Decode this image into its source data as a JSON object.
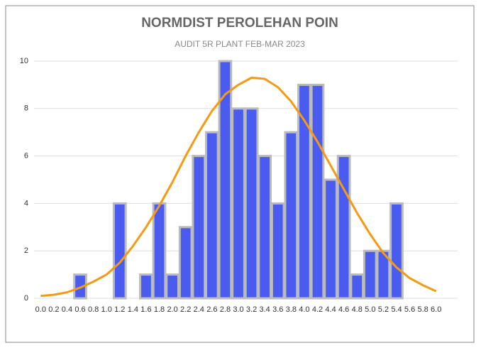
{
  "chart_data": {
    "type": "bar",
    "title": "NORMDIST PEROLEHAN POIN",
    "subtitle": "AUDIT 5R PLANT FEB-MAR 2023",
    "categories": [
      "0.0",
      "0.2",
      "0.4",
      "0.6",
      "0.8",
      "1.0",
      "1.2",
      "1.4",
      "1.6",
      "1.8",
      "2.0",
      "2.2",
      "2.4",
      "2.6",
      "2.8",
      "3.0",
      "3.2",
      "3.4",
      "3.6",
      "3.8",
      "4.0",
      "4.2",
      "4.4",
      "4.6",
      "4.8",
      "5.0",
      "5.2",
      "5.4",
      "5.6",
      "5.8",
      "6.0"
    ],
    "series": [
      {
        "type": "bar",
        "color": "#4a5cf0",
        "values": [
          0,
          0,
          0,
          1,
          0,
          0,
          4,
          0,
          1,
          4,
          1,
          3,
          6,
          7,
          10,
          8,
          8,
          6,
          4,
          7,
          9,
          9,
          5,
          6,
          1,
          2,
          2,
          4,
          0,
          0,
          0
        ]
      },
      {
        "type": "line",
        "color": "#f59a12",
        "values": [
          0.1,
          0.15,
          0.25,
          0.45,
          0.7,
          1.0,
          1.5,
          2.2,
          3.0,
          3.9,
          4.9,
          6.0,
          7.0,
          7.9,
          8.6,
          9.0,
          9.3,
          9.25,
          8.9,
          8.3,
          7.5,
          6.6,
          5.6,
          4.6,
          3.6,
          2.7,
          1.9,
          1.3,
          0.85,
          0.55,
          0.3
        ]
      }
    ],
    "ylim": [
      0,
      10
    ],
    "yticks": [
      0,
      2,
      4,
      6,
      8,
      10
    ],
    "grid": true
  }
}
